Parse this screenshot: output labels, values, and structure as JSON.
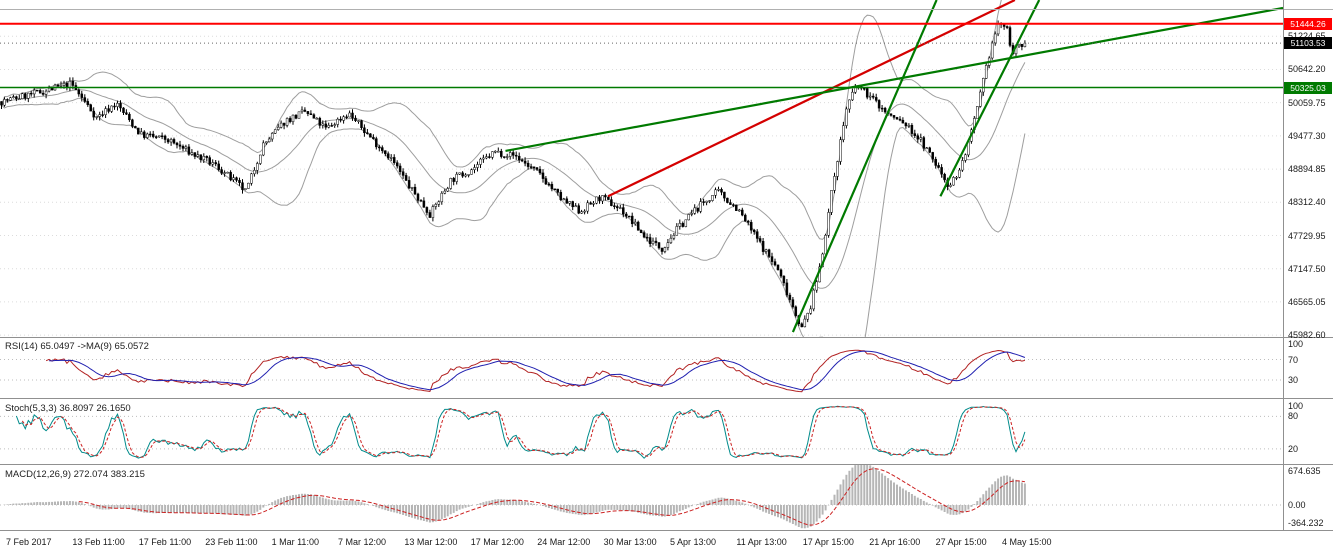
{
  "chart_data": {
    "type": "candlestick",
    "time_labels": [
      "7 Feb 2017",
      "13 Feb 11:00",
      "17 Feb 11:00",
      "23 Feb 11:00",
      "1 Mar 11:00",
      "7 Mar 12:00",
      "13 Mar 12:00",
      "17 Mar 12:00",
      "24 Mar 12:00",
      "30 Mar 13:00",
      "5 Apr 13:00",
      "11 Apr 13:00",
      "17 Apr 15:00",
      "21 Apr 16:00",
      "27 Apr 15:00",
      "4 May 15:00"
    ],
    "main": {
      "ylim": [
        45950,
        51860
      ],
      "y_tick_labels": [
        "51224.65",
        "50642.20",
        "50059.75",
        "49477.30",
        "48894.85",
        "48312.40",
        "47729.95",
        "47147.50",
        "46565.05",
        "45982.60"
      ],
      "y_tick_values": [
        51224.65,
        50642.2,
        50059.75,
        49477.3,
        48894.85,
        48312.4,
        47729.95,
        47147.5,
        46565.05,
        45982.6
      ],
      "candle_count": 345,
      "candle_area_fraction": 0.8,
      "noise": {
        "body": 130,
        "wick": 70,
        "seed": 7
      },
      "price_path_anchors": [
        [
          0,
          50080
        ],
        [
          0.005,
          50100
        ],
        [
          0.039,
          50250
        ],
        [
          0.068,
          50390
        ],
        [
          0.093,
          49800
        ],
        [
          0.112,
          50050
        ],
        [
          0.136,
          49500
        ],
        [
          0.161,
          49420
        ],
        [
          0.185,
          49180
        ],
        [
          0.21,
          48950
        ],
        [
          0.239,
          48500
        ],
        [
          0.255,
          49300
        ],
        [
          0.278,
          49750
        ],
        [
          0.297,
          49900
        ],
        [
          0.317,
          49600
        ],
        [
          0.339,
          49880
        ],
        [
          0.359,
          49480
        ],
        [
          0.38,
          49100
        ],
        [
          0.398,
          48600
        ],
        [
          0.419,
          48100
        ],
        [
          0.439,
          48700
        ],
        [
          0.46,
          48900
        ],
        [
          0.482,
          49200
        ],
        [
          0.502,
          49130
        ],
        [
          0.526,
          48800
        ],
        [
          0.548,
          48350
        ],
        [
          0.565,
          48150
        ],
        [
          0.585,
          48400
        ],
        [
          0.606,
          48180
        ],
        [
          0.629,
          47700
        ],
        [
          0.645,
          47500
        ],
        [
          0.663,
          47900
        ],
        [
          0.682,
          48250
        ],
        [
          0.7,
          48500
        ],
        [
          0.719,
          48200
        ],
        [
          0.739,
          47650
        ],
        [
          0.758,
          47150
        ],
        [
          0.772,
          46550
        ],
        [
          0.782,
          46100
        ],
        [
          0.791,
          46500
        ],
        [
          0.801,
          47300
        ],
        [
          0.814,
          48800
        ],
        [
          0.826,
          50000
        ],
        [
          0.836,
          50360
        ],
        [
          0.85,
          50150
        ],
        [
          0.866,
          49850
        ],
        [
          0.882,
          49700
        ],
        [
          0.898,
          49400
        ],
        [
          0.914,
          48950
        ],
        [
          0.926,
          48600
        ],
        [
          0.937,
          48900
        ],
        [
          0.949,
          49600
        ],
        [
          0.959,
          50400
        ],
        [
          0.967,
          51050
        ],
        [
          0.975,
          51480
        ],
        [
          0.982,
          51350
        ],
        [
          0.988,
          50950
        ],
        [
          1,
          51103.53
        ]
      ],
      "bollinger": {
        "period": 20,
        "deviation": 2,
        "color": "#9e9e9e"
      },
      "up_color": "#ffffff",
      "down_color": "#000000",
      "outline_color": "#000000",
      "horizontal_lines": [
        {
          "name": "resistance-line",
          "value": 51444.26,
          "label": "51444.26",
          "color": "#ff0000",
          "width": 2
        },
        {
          "name": "support-line",
          "value": 50325.03,
          "label": "50325.03",
          "color": "#007a00",
          "width": 1.6
        }
      ],
      "current_price": {
        "value": 51103.53,
        "label": "51103.53",
        "badge_color": "#000000"
      },
      "trendlines": [
        {
          "name": "red-trendline",
          "color": "#d40000",
          "width": 2.2,
          "points": [
            [
              0.474,
              48419
            ],
            [
              0.791,
              51860
            ]
          ]
        },
        {
          "name": "green-trendline-long",
          "color": "#007a00",
          "width": 2.2,
          "points": [
            [
              0.394,
              49213
            ],
            [
              1.0,
              51719
            ]
          ]
        },
        {
          "name": "green-trendline-steep",
          "color": "#007a00",
          "width": 2.2,
          "points": [
            [
              0.618,
              46036
            ],
            [
              0.73,
              51860
            ]
          ]
        },
        {
          "name": "green-trendline-channel",
          "color": "#007a00",
          "width": 2.2,
          "points": [
            [
              0.733,
              48419
            ],
            [
              0.81,
              51860
            ]
          ]
        }
      ]
    },
    "rsi": {
      "label": "RSI(14) 65.0497 ->MA(9) 65.0572",
      "period": 14,
      "ma_period": 9,
      "last_values": [
        65.0497,
        65.0572
      ],
      "range": [
        -5,
        112
      ],
      "y_ticks": [
        100,
        70,
        30
      ],
      "level_lines": [
        70,
        30
      ],
      "line_color": "#b22222",
      "ma_color": "#2020b0"
    },
    "stoch": {
      "label": "Stoch(5,3,3) 36.8097 26.1650",
      "k": 5,
      "d": 3,
      "slowing": 3,
      "last_values": [
        36.8097,
        26.165
      ],
      "range": [
        -8,
        112
      ],
      "y_ticks": [
        100,
        80,
        20
      ],
      "level_lines": [
        80,
        20
      ],
      "k_color": "#008b8b",
      "d_color": "#cc2222"
    },
    "macd": {
      "label": "MACD(12,26,9) 272.074 383.215",
      "fast": 12,
      "slow": 26,
      "signal": 9,
      "last_values": [
        272.074,
        383.215
      ],
      "range": [
        -500,
        800
      ],
      "y_tick_labels": [
        "674.635",
        "0.00",
        "-364.232"
      ],
      "y_tick_values": [
        674.635,
        0,
        -364.232
      ],
      "histogram_color": "#b6b6b6",
      "signal_color": "#cc2222"
    }
  }
}
